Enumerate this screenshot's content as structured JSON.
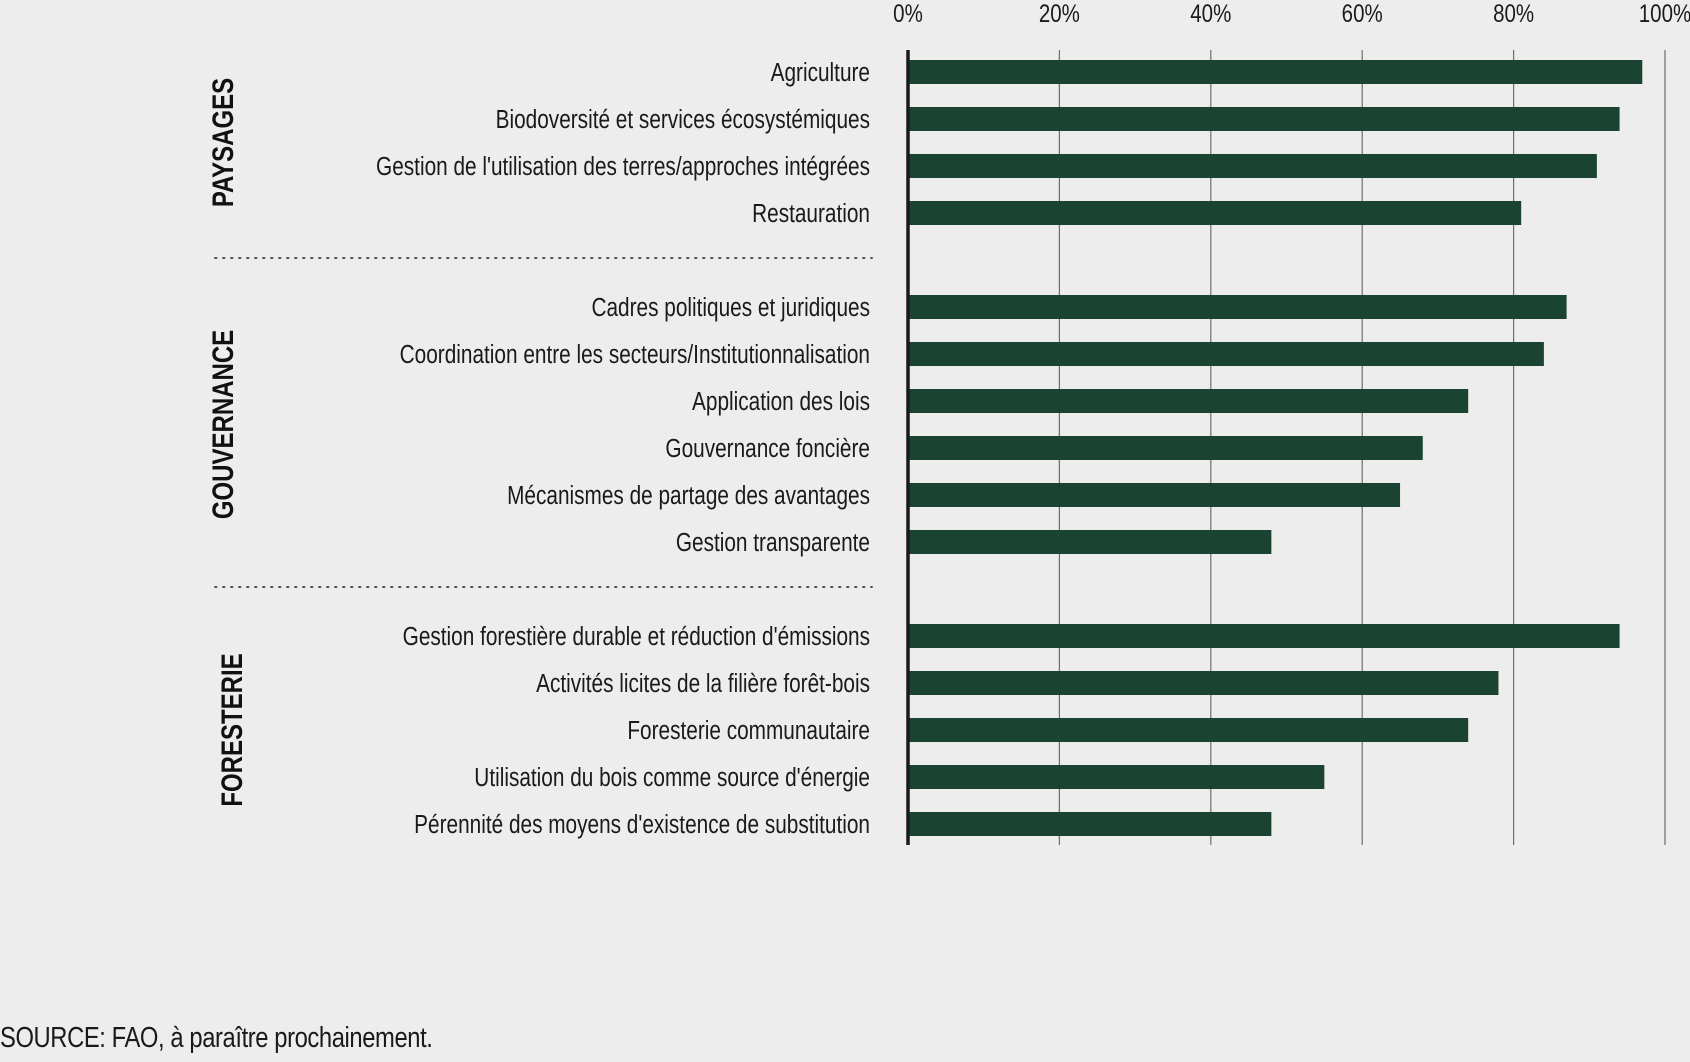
{
  "chart_data": {
    "type": "bar",
    "orientation": "horizontal",
    "xlim": [
      0,
      100
    ],
    "x_ticks": [
      "0%",
      "20%",
      "40%",
      "60%",
      "80%",
      "100%"
    ],
    "grid": true,
    "bar_color": "#1a4331",
    "groups": [
      {
        "label": "PAYSAGES",
        "categories": [
          "Agriculture",
          "Biodoversité et services écosystémiques",
          "Gestion de l'utilisation des terres/approches intégrées",
          "Restauration"
        ],
        "values": [
          97,
          94,
          91,
          81
        ]
      },
      {
        "label": "GOUVERNANCE",
        "categories": [
          "Cadres politiques et juridiques",
          "Coordination entre les secteurs/Institutionnalisation",
          "Application des lois",
          "Gouvernance foncière",
          "Mécanismes de partage des avantages",
          "Gestion transparente"
        ],
        "values": [
          87,
          84,
          74,
          68,
          65,
          48
        ]
      },
      {
        "label": "FORESTERIE",
        "categories": [
          "Gestion forestière durable et réduction d'émissions",
          "Activités licites de la filière forêt-bois",
          "Foresterie communautaire",
          "Utilisation du bois comme source d'énergie",
          "Pérennité des moyens d'existence de substitution"
        ],
        "values": [
          94,
          78,
          74,
          55,
          48
        ]
      }
    ]
  },
  "source": "SOURCE: FAO, à paraître prochainement."
}
